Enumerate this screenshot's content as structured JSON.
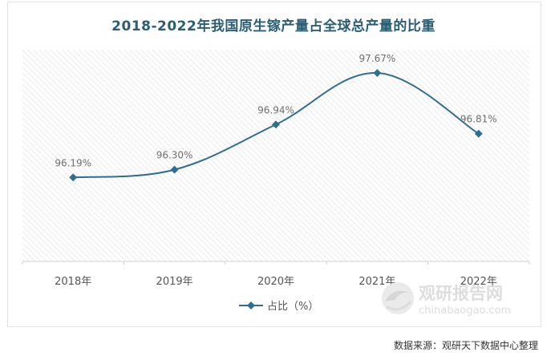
{
  "chart_data": {
    "type": "line",
    "title": "2018-2022年我国原生镓产量占全球总产量的比重",
    "categories": [
      "2018年",
      "2019年",
      "2020年",
      "2021年",
      "2022年"
    ],
    "series": [
      {
        "name": "占比（%）",
        "values": [
          96.19,
          96.3,
          96.94,
          97.67,
          96.81
        ],
        "labels": [
          "96.19%",
          "96.30%",
          "96.94%",
          "97.67%",
          "96.81%"
        ]
      }
    ],
    "ylim": [
      95.0,
      98.0
    ],
    "grid": false,
    "legend": "bottom",
    "smooth": true
  },
  "colors": {
    "line": "#2e6e8e",
    "title": "#2b5d73",
    "label": "#6f6f6f",
    "axis": "#d0d0d0"
  },
  "watermark": {
    "name": "观研报告网",
    "url": "chinabaogao.com"
  },
  "source": "数据来源：观研天下数据中心整理"
}
